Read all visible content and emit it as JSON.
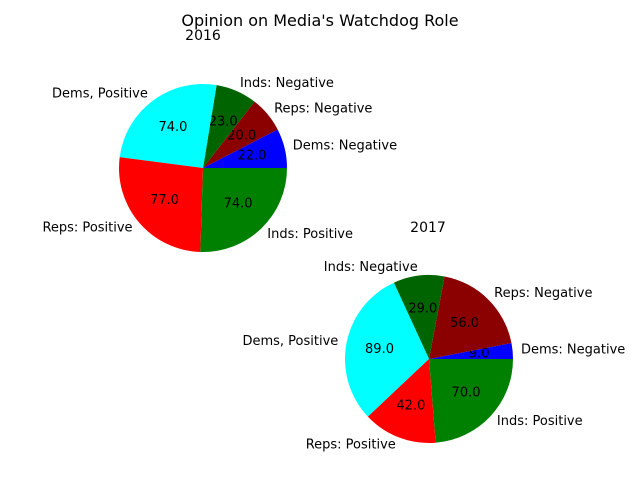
{
  "title": "Opinion on Media's Watchdog Role",
  "chart_data": [
    {
      "type": "pie",
      "title": "2016",
      "labels": [
        "Dems: Negative",
        "Reps: Negative",
        "Inds: Negative",
        "Dems, Positive",
        "Reps: Positive",
        "Inds: Positive"
      ],
      "values": [
        22.0,
        20.0,
        23.0,
        74.0,
        77.0,
        74.0
      ],
      "value_labels": [
        "22.0",
        "20.0",
        "23.0",
        "74.0",
        "77.0",
        "74.0"
      ],
      "colors": [
        "#0000ff",
        "#8b0000",
        "#006400",
        "#00ffff",
        "#ff0000",
        "#008000"
      ]
    },
    {
      "type": "pie",
      "title": "2017",
      "labels": [
        "Dems: Negative",
        "Reps: Negative",
        "Inds: Negative",
        "Dems, Positive",
        "Reps: Positive",
        "Inds: Positive"
      ],
      "values": [
        9.0,
        56.0,
        29.0,
        89.0,
        42.0,
        70.0
      ],
      "value_labels": [
        "9.0",
        "56.0",
        "29.0",
        "89.0",
        "42.0",
        "70.0"
      ],
      "colors": [
        "#0000ff",
        "#8b0000",
        "#006400",
        "#00ffff",
        "#ff0000",
        "#008000"
      ]
    }
  ]
}
